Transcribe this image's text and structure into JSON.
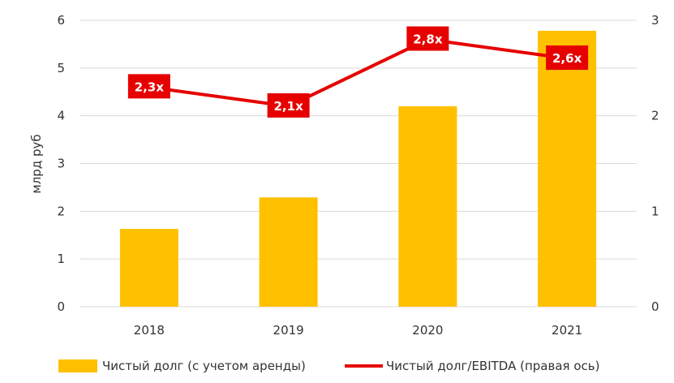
{
  "chart_data": {
    "type": "bar+line",
    "categories": [
      "2018",
      "2019",
      "2020",
      "2021"
    ],
    "ylabel": "млрд руб",
    "ylim": [
      0,
      6
    ],
    "y2lim": [
      0,
      3
    ],
    "y_ticks": [
      "0",
      "1",
      "2",
      "3",
      "4",
      "5",
      "6"
    ],
    "y2_ticks": [
      "0",
      "1",
      "2",
      "3"
    ],
    "grid": true,
    "legend_position": "bottom",
    "series": [
      {
        "name": "Чистый долг (с учетом аренды)",
        "type": "bar",
        "axis": "left",
        "color": "#FFC000",
        "values": [
          1.63,
          2.29,
          4.2,
          5.78
        ]
      },
      {
        "name": "Чистый долг/EBITDA (правая ось)",
        "type": "line",
        "axis": "right",
        "color": "#E60000",
        "values": [
          2.3,
          2.1,
          2.8,
          2.6
        ],
        "labels": [
          "2,3x",
          "2,1x",
          "2,8x",
          "2,6x"
        ]
      }
    ]
  }
}
